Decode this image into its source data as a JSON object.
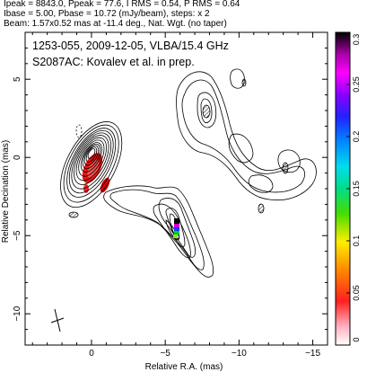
{
  "header": {
    "line1": "Ipeak = 8843.0, Ppeak = 77.6, I RMS = 0.54, P RMS = 0.64",
    "line2": "Ibase = 5.00, Pbase = 10.72 (mJy/beam), steps: x 2",
    "line3": "Beam: 1.57x0.52 mas at -11.4 deg., Nat. Wgt. (no taper)"
  },
  "annotation": {
    "line1": "1253-055, 2009-12-05, VLBA/15.4 GHz",
    "line2": "S2087AC: Kovalev et al. in prep."
  },
  "chart_data": {
    "type": "contour",
    "xlabel": "Relative R.A. (mas)",
    "ylabel": "Relative Decination (mas)",
    "xlim": [
      4.5,
      -16
    ],
    "ylim": [
      -12,
      8
    ],
    "x_ticks": [
      0,
      -5,
      -10,
      -15
    ],
    "y_ticks": [
      5,
      0,
      -5,
      -10
    ],
    "x_tick_labels": [
      "0",
      "−5",
      "−10",
      "−15"
    ],
    "y_tick_labels": [
      "5",
      "0",
      "−5",
      "−10"
    ],
    "colorbar": {
      "min": 0,
      "max": 0.3,
      "ticks": [
        0,
        0.05,
        0.1,
        0.15,
        0.2,
        0.25,
        0.3
      ],
      "tick_labels": [
        "0",
        "0.05",
        "0.1",
        "0.15",
        "0.2",
        "0.25",
        "0.3"
      ],
      "colors": [
        "#ffffff",
        "#ff8888",
        "#ff0000",
        "#ff8800",
        "#ffff00",
        "#88ff00",
        "#00cc00",
        "#00ffcc",
        "#00ccff",
        "#0066ff",
        "#0000ff",
        "#8800ff",
        "#ff00ff",
        "#aa00aa",
        "#000000"
      ]
    },
    "core_peak_x": 0,
    "core_peak_y": 0.3,
    "components": [
      {
        "x": 0,
        "y": 0.3
      },
      {
        "x": -5.2,
        "y": -3.5
      },
      {
        "x": -6.5,
        "y": 5.6
      }
    ],
    "grid": false,
    "legend": "none"
  }
}
